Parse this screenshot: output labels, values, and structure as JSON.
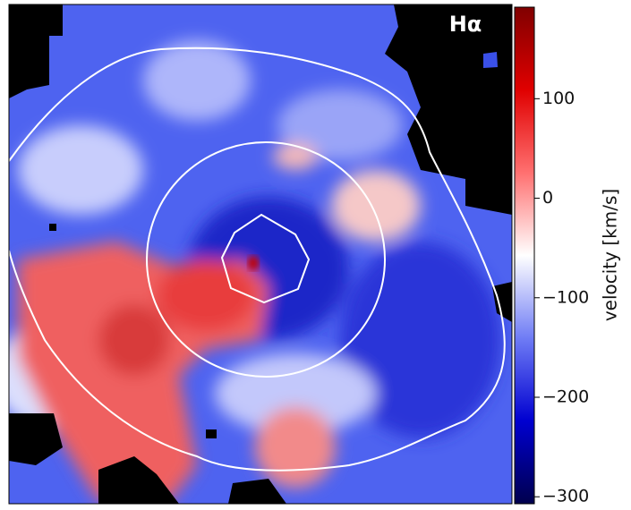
{
  "chart_data": {
    "type": "velocity-map",
    "annotation": "Hα",
    "colorbar": {
      "label": "velocity [km/s]",
      "lim": [
        -307,
        192
      ],
      "ticks": [
        {
          "value": -300,
          "label": "−300"
        },
        {
          "value": -200,
          "label": "−200"
        },
        {
          "value": -100,
          "label": "−100"
        },
        0,
        100
      ],
      "colors": [
        "#00004d",
        "#0000d0",
        "#6f7cf5",
        "#ffffff",
        "#ff7070",
        "#e00000",
        "#800000"
      ]
    }
  }
}
